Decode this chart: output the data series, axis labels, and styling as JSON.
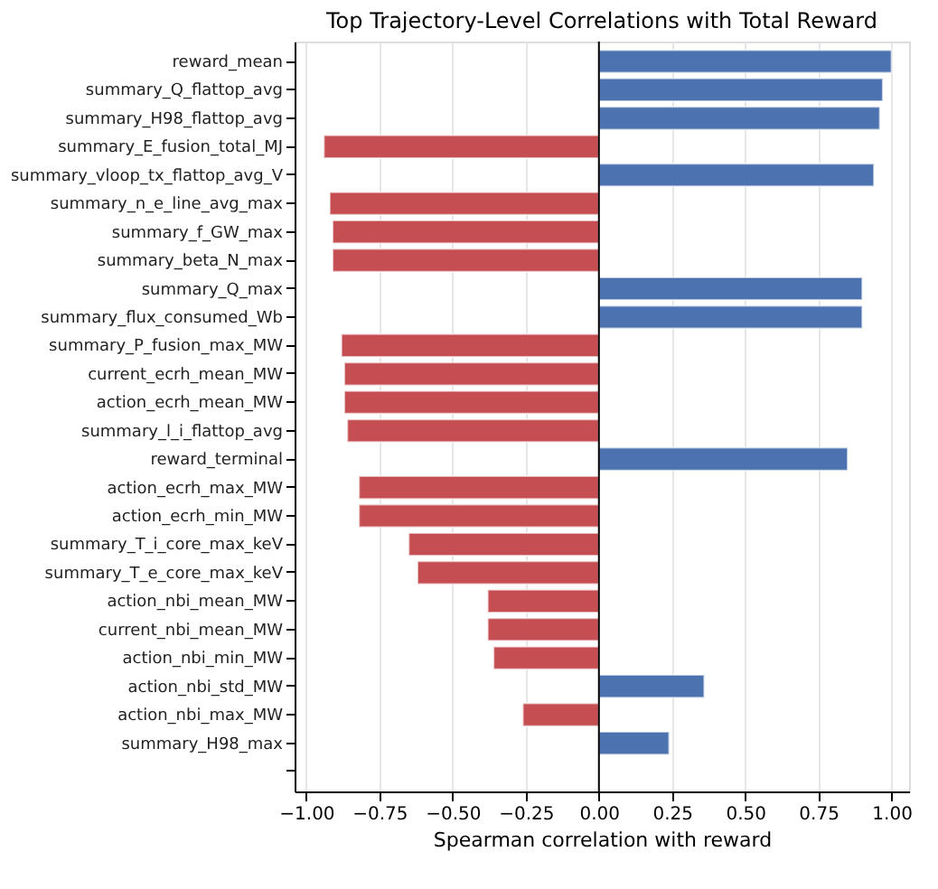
{
  "chart_data": {
    "type": "bar",
    "orientation": "horizontal",
    "title": "Top Trajectory-Level Correlations with Total Reward",
    "xlabel": "Spearman correlation with reward",
    "categories": [
      "reward_mean",
      "summary_Q_flattop_avg",
      "summary_H98_flattop_avg",
      "summary_E_fusion_total_MJ",
      "summary_vloop_tx_flattop_avg_V",
      "summary_n_e_line_avg_max",
      "summary_f_GW_max",
      "summary_beta_N_max",
      "summary_Q_max",
      "summary_flux_consumed_Wb",
      "summary_P_fusion_max_MW",
      "current_ecrh_mean_MW",
      "action_ecrh_mean_MW",
      "summary_l_i_flattop_avg",
      "reward_terminal",
      "action_ecrh_max_MW",
      "action_ecrh_min_MW",
      "summary_T_i_core_max_keV",
      "summary_T_e_core_max_keV",
      "action_nbi_mean_MW",
      "current_nbi_mean_MW",
      "action_nbi_min_MW",
      "action_nbi_std_MW",
      "action_nbi_max_MW",
      "summary_H98_max"
    ],
    "values": [
      1.0,
      0.97,
      0.96,
      -0.94,
      0.94,
      -0.92,
      -0.91,
      -0.91,
      0.9,
      0.9,
      -0.88,
      -0.87,
      -0.87,
      -0.86,
      0.85,
      -0.82,
      -0.82,
      -0.65,
      -0.62,
      -0.38,
      -0.38,
      -0.36,
      0.36,
      -0.26,
      0.24
    ],
    "colors": [
      "#4c72b0",
      "#4c72b0",
      "#4c72b0",
      "#c44e52",
      "#4c72b0",
      "#c44e52",
      "#c44e52",
      "#c44e52",
      "#4c72b0",
      "#4c72b0",
      "#c44e52",
      "#c44e52",
      "#c44e52",
      "#c44e52",
      "#4c72b0",
      "#c44e52",
      "#c44e52",
      "#c44e52",
      "#c44e52",
      "#c44e52",
      "#c44e52",
      "#c44e52",
      "#4c72b0",
      "#c44e52",
      "#4c72b0"
    ],
    "xlim": [
      -1.04,
      1.06
    ],
    "xticks": [
      {
        "value": -1,
        "label": "−1.00"
      },
      {
        "value": -0.75,
        "label": "−0.75"
      },
      {
        "value": -0.5,
        "label": "−0.50"
      },
      {
        "value": -0.25,
        "label": "−0.25"
      },
      {
        "value": 0,
        "label": "0.00"
      },
      {
        "value": 0.25,
        "label": "0.25"
      },
      {
        "value": 0.5,
        "label": "0.50"
      },
      {
        "value": 0.75,
        "label": "0.75"
      },
      {
        "value": 1,
        "label": "1.00"
      }
    ],
    "grid": "x",
    "ref_lines": [
      {
        "axis": "x",
        "value": 0,
        "color": "#000000"
      }
    ]
  }
}
